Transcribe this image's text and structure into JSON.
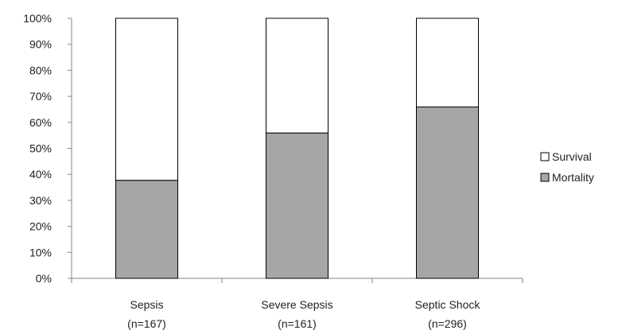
{
  "chart_data": {
    "type": "bar",
    "stacked": true,
    "percent": true,
    "categories": [
      "Sepsis",
      "Severe Sepsis",
      "Septic Shock"
    ],
    "category_counts": [
      "(n=167)",
      "(n=161)",
      "(n=296)"
    ],
    "series": [
      {
        "name": "Mortality",
        "values": [
          37.7,
          55.9,
          65.9
        ],
        "color": "#a6a6a6"
      },
      {
        "name": "Survival",
        "values": [
          62.3,
          44.1,
          34.1
        ],
        "color": "#ffffff"
      }
    ],
    "yticks": [
      "0%",
      "10%",
      "20%",
      "30%",
      "40%",
      "50%",
      "60%",
      "70%",
      "80%",
      "90%",
      "100%"
    ],
    "ylim": [
      0,
      100
    ],
    "legend": {
      "position": "right",
      "order": [
        "Survival",
        "Mortality"
      ]
    },
    "grid": false,
    "bar_outline_color": "#000000",
    "axis_color": "#868686"
  }
}
